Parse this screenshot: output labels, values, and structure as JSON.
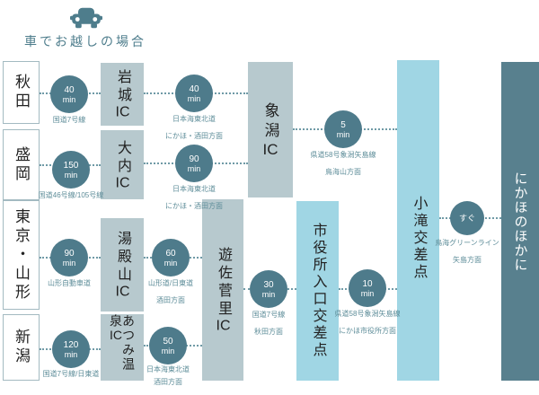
{
  "header": {
    "title": "車でお越しの場合",
    "icon": "car-icon",
    "accent_color": "#4e7d8c"
  },
  "colors": {
    "circle_fill": "#4e7b8b",
    "ic_box": "#b7c9ce",
    "crossing_box": "#a0d6e4",
    "destination_box": "#58808e",
    "caption_text": "#5e8d99",
    "dotted_line": "#6f9aa6"
  },
  "nodes": {
    "akita": "秋田",
    "morioka": "盛岡",
    "tokyo_yamagata": "東京・山形",
    "niigata": "新潟",
    "iwaki": "岩城IC",
    "ouchi": "大内IC",
    "yudonosan": "湯殿山IC",
    "atsumi": "あつみ温泉IC",
    "kisakata": "象潟IC",
    "yuza": "遊佐菅里IC",
    "shiyakusho": "市役所入口交差点",
    "kotaki": "小滝交差点",
    "dest": "にかほのほかに"
  },
  "legs": [
    {
      "from": "秋田",
      "to": "岩城IC",
      "time": "40",
      "unit": "min",
      "route": "国道7号線",
      "direction": ""
    },
    {
      "from": "盛岡",
      "to": "大内IC",
      "time": "150",
      "unit": "min",
      "route": "国道46号線/105号線",
      "direction": ""
    },
    {
      "from": "東京・山形",
      "to": "湯殿山IC",
      "time": "90",
      "unit": "min",
      "route": "山形自動車道",
      "direction": ""
    },
    {
      "from": "新潟",
      "to": "あつみ温泉IC",
      "time": "120",
      "unit": "min",
      "route": "国道7号線/日東道",
      "direction": ""
    },
    {
      "from": "岩城IC",
      "to": "象潟IC",
      "time": "40",
      "unit": "min",
      "route": "日本海東北道",
      "direction": "にかほ・酒田方面"
    },
    {
      "from": "大内IC",
      "to": "象潟IC",
      "time": "90",
      "unit": "min",
      "route": "日本海東北道",
      "direction": "にかほ・酒田方面"
    },
    {
      "from": "湯殿山IC",
      "to": "遊佐菅里IC",
      "time": "60",
      "unit": "min",
      "route": "山形道/日東道",
      "direction": "酒田方面"
    },
    {
      "from": "あつみ温泉IC",
      "to": "遊佐菅里IC",
      "time": "50",
      "unit": "min",
      "route": "日本海東北道",
      "direction": "酒田方面"
    },
    {
      "from": "遊佐菅里IC",
      "to": "市役所入口交差点",
      "time": "30",
      "unit": "min",
      "route": "国道7号線",
      "direction": "秋田方面"
    },
    {
      "from": "象潟IC",
      "to": "小滝交差点",
      "time": "5",
      "unit": "min",
      "route": "県道58号象潟矢島線",
      "direction": "鳥海山方面"
    },
    {
      "from": "市役所入口交差点",
      "to": "小滝交差点",
      "time": "10",
      "unit": "min",
      "route": "県道58号象潟矢島線",
      "direction": "にかほ市役所方面"
    },
    {
      "from": "小滝交差点",
      "to": "にかほのほかに",
      "time": "すぐ",
      "unit": "",
      "route": "鳥海グリーンライン",
      "direction": "矢島方面"
    }
  ]
}
